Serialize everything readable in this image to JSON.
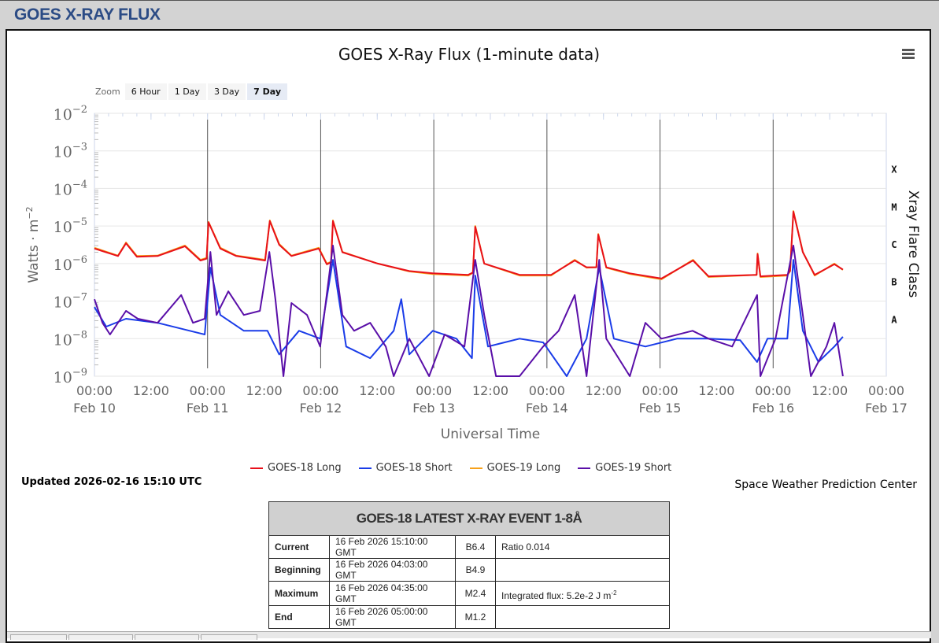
{
  "header": {
    "title": "GOES X-RAY FLUX"
  },
  "zoom": {
    "label": "Zoom",
    "buttons": [
      "6 Hour",
      "1 Day",
      "3 Day",
      "7 Day"
    ],
    "selected": "7 Day"
  },
  "updated": "Updated 2026-02-16 15:10 UTC",
  "credit": "Space Weather Prediction Center",
  "chart_data": {
    "type": "line",
    "title": "GOES X-Ray Flux (1-minute data)",
    "xlabel": "Universal Time",
    "ylabel": "Watts · m",
    "ylabel_sup": "-2",
    "y2label": "Xray Flare Class",
    "yscale": "log10",
    "ylim_exp": [
      -9,
      -2
    ],
    "y_tick_base": "10",
    "y_tick_exps": [
      "-2",
      "-3",
      "-4",
      "-5",
      "-6",
      "-7",
      "-8",
      "-9"
    ],
    "flare_classes": [
      {
        "label": "X",
        "log": -3.5
      },
      {
        "label": "M",
        "log": -4.5
      },
      {
        "label": "C",
        "log": -5.5
      },
      {
        "label": "B",
        "log": -6.5
      },
      {
        "label": "A",
        "log": -7.5
      }
    ],
    "x_unit": "hours since Feb 10 00:00 UTC",
    "xlim": [
      0,
      168
    ],
    "x_ticks": [
      {
        "h": 0,
        "time": "00:00",
        "date": "Feb 10"
      },
      {
        "h": 12,
        "time": "12:00",
        "date": ""
      },
      {
        "h": 24,
        "time": "00:00",
        "date": "Feb 11"
      },
      {
        "h": 36,
        "time": "12:00",
        "date": ""
      },
      {
        "h": 48,
        "time": "00:00",
        "date": "Feb 12"
      },
      {
        "h": 60,
        "time": "12:00",
        "date": ""
      },
      {
        "h": 72,
        "time": "00:00",
        "date": "Feb 13"
      },
      {
        "h": 84,
        "time": "12:00",
        "date": ""
      },
      {
        "h": 96,
        "time": "00:00",
        "date": "Feb 14"
      },
      {
        "h": 108,
        "time": "12:00",
        "date": ""
      },
      {
        "h": 120,
        "time": "00:00",
        "date": "Feb 15"
      },
      {
        "h": 132,
        "time": "12:00",
        "date": ""
      },
      {
        "h": 144,
        "time": "00:00",
        "date": "Feb 16"
      },
      {
        "h": 156,
        "time": "12:00",
        "date": ""
      },
      {
        "h": 168,
        "time": "00:00",
        "date": "Feb 17"
      }
    ],
    "series": [
      {
        "name": "GOES-18 Long",
        "color": "#e8101a",
        "points": [
          [
            0,
            -5.6
          ],
          [
            5,
            -5.8
          ],
          [
            6.7,
            -5.46
          ],
          [
            9,
            -5.82
          ],
          [
            13.4,
            -5.8
          ],
          [
            19.2,
            -5.54
          ],
          [
            22.5,
            -5.92
          ],
          [
            23.8,
            -5.87
          ],
          [
            24.2,
            -4.9
          ],
          [
            26.7,
            -5.6
          ],
          [
            30.1,
            -5.8
          ],
          [
            36.2,
            -5.92
          ],
          [
            37.2,
            -4.87
          ],
          [
            39.2,
            -5.5
          ],
          [
            41.8,
            -5.8
          ],
          [
            47.6,
            -5.6
          ],
          [
            49.3,
            -6.02
          ],
          [
            50.2,
            -5.97
          ],
          [
            50.6,
            -4.87
          ],
          [
            52.6,
            -5.7
          ],
          [
            60.1,
            -6.0
          ],
          [
            66.8,
            -6.2
          ],
          [
            71.8,
            -6.26
          ],
          [
            79.3,
            -6.3
          ],
          [
            80.3,
            -6.24
          ],
          [
            80.8,
            -5.02
          ],
          [
            82.7,
            -6.0
          ],
          [
            90.2,
            -6.3
          ],
          [
            96.9,
            -6.3
          ],
          [
            101.9,
            -5.92
          ],
          [
            104.4,
            -6.1
          ],
          [
            106.5,
            -6.1
          ],
          [
            106.9,
            -5.23
          ],
          [
            108.6,
            -6.1
          ],
          [
            113.6,
            -6.26
          ],
          [
            120.3,
            -6.4
          ],
          [
            127,
            -5.92
          ],
          [
            130.3,
            -6.34
          ],
          [
            140.5,
            -6.3
          ],
          [
            140.7,
            -5.75
          ],
          [
            141.3,
            -6.34
          ],
          [
            147,
            -6.3
          ],
          [
            147.6,
            -6.2
          ],
          [
            148.3,
            -4.62
          ],
          [
            150.3,
            -5.7
          ],
          [
            152.8,
            -6.3
          ],
          [
            157,
            -6.02
          ],
          [
            158.8,
            -6.16
          ]
        ]
      },
      {
        "name": "GOES-18 Short",
        "color": "#1a3ce8",
        "points": [
          [
            0,
            -7.16
          ],
          [
            2.5,
            -7.68
          ],
          [
            6.7,
            -7.47
          ],
          [
            13.4,
            -7.58
          ],
          [
            23.4,
            -7.89
          ],
          [
            24.6,
            -6.11
          ],
          [
            26.7,
            -7.37
          ],
          [
            31.7,
            -7.79
          ],
          [
            36.7,
            -7.79
          ],
          [
            39.2,
            -8.42
          ],
          [
            43.4,
            -7.79
          ],
          [
            47.9,
            -8.0
          ],
          [
            50.6,
            -5.9
          ],
          [
            53.4,
            -8.21
          ],
          [
            58.5,
            -8.52
          ],
          [
            63.5,
            -7.79
          ],
          [
            65.1,
            -6.95
          ],
          [
            66.8,
            -8.42
          ],
          [
            71.8,
            -7.79
          ],
          [
            76.8,
            -8.0
          ],
          [
            80.1,
            -8.52
          ],
          [
            80.8,
            -6.32
          ],
          [
            83.5,
            -8.21
          ],
          [
            90.2,
            -8.0
          ],
          [
            95.2,
            -8.1
          ],
          [
            100.2,
            -9.0
          ],
          [
            104.4,
            -8.0
          ],
          [
            107.1,
            -6.11
          ],
          [
            110.2,
            -8.0
          ],
          [
            116.9,
            -8.21
          ],
          [
            123.6,
            -8.0
          ],
          [
            130.3,
            -8.0
          ],
          [
            137,
            -8.04
          ],
          [
            140.6,
            -8.62
          ],
          [
            142.8,
            -8.0
          ],
          [
            147,
            -8.0
          ],
          [
            148.3,
            -5.9
          ],
          [
            150.3,
            -7.79
          ],
          [
            153.6,
            -8.62
          ],
          [
            157,
            -8.21
          ],
          [
            158.8,
            -7.95
          ]
        ]
      },
      {
        "name": "GOES-19 Long",
        "color": "#f7a11a",
        "points": [
          [
            0,
            -5.58
          ],
          [
            5,
            -5.79
          ],
          [
            6.7,
            -5.44
          ],
          [
            9,
            -5.8
          ],
          [
            13.4,
            -5.79
          ],
          [
            19.2,
            -5.52
          ],
          [
            22.5,
            -5.9
          ],
          [
            23.8,
            -5.85
          ],
          [
            24.2,
            -4.89
          ],
          [
            26.7,
            -5.58
          ],
          [
            30.1,
            -5.79
          ],
          [
            36.2,
            -5.9
          ],
          [
            37.2,
            -4.85
          ],
          [
            39.2,
            -5.48
          ],
          [
            41.8,
            -5.79
          ],
          [
            47.6,
            -5.58
          ],
          [
            49.3,
            -6.0
          ],
          [
            50.2,
            -5.95
          ],
          [
            50.6,
            -4.85
          ],
          [
            52.6,
            -5.69
          ],
          [
            60.1,
            -6.0
          ],
          [
            66.8,
            -6.21
          ],
          [
            71.8,
            -6.28
          ],
          [
            79.3,
            -6.32
          ],
          [
            80.3,
            -6.25
          ],
          [
            80.8,
            -5.0
          ],
          [
            82.7,
            -6.0
          ],
          [
            90.2,
            -6.32
          ],
          [
            96.9,
            -6.32
          ],
          [
            101.9,
            -5.9
          ],
          [
            104.4,
            -6.11
          ],
          [
            106.5,
            -6.1
          ],
          [
            106.9,
            -5.21
          ],
          [
            108.6,
            -6.11
          ],
          [
            113.6,
            -6.28
          ],
          [
            120.3,
            -6.42
          ],
          [
            127,
            -5.9
          ],
          [
            130.3,
            -6.36
          ],
          [
            140.5,
            -6.3
          ],
          [
            140.7,
            -5.73
          ],
          [
            141.3,
            -6.36
          ],
          [
            147,
            -6.32
          ],
          [
            147.6,
            -6.2
          ],
          [
            148.3,
            -4.6
          ],
          [
            150.3,
            -5.69
          ],
          [
            152.8,
            -6.32
          ],
          [
            157,
            -6.0
          ],
          [
            158.8,
            -6.17
          ]
        ]
      },
      {
        "name": "GOES-19 Short",
        "color": "#5a0fa8",
        "points": [
          [
            0,
            -6.95
          ],
          [
            1.7,
            -7.58
          ],
          [
            3.3,
            -7.89
          ],
          [
            6.7,
            -7.26
          ],
          [
            9.2,
            -7.47
          ],
          [
            13.4,
            -7.58
          ],
          [
            18.4,
            -6.84
          ],
          [
            20.9,
            -7.58
          ],
          [
            23.4,
            -7.47
          ],
          [
            24.6,
            -5.69
          ],
          [
            25.9,
            -7.37
          ],
          [
            28.4,
            -6.74
          ],
          [
            31.7,
            -7.37
          ],
          [
            35.1,
            -7.26
          ],
          [
            37.1,
            -5.69
          ],
          [
            38.4,
            -6.95
          ],
          [
            40.1,
            -9.0
          ],
          [
            41.8,
            -7.05
          ],
          [
            45.1,
            -7.37
          ],
          [
            47.9,
            -8.21
          ],
          [
            50.6,
            -5.52
          ],
          [
            52.6,
            -7.37
          ],
          [
            55.1,
            -7.79
          ],
          [
            58.5,
            -7.58
          ],
          [
            61.8,
            -8.21
          ],
          [
            63.5,
            -9.0
          ],
          [
            66.8,
            -8.0
          ],
          [
            71,
            -9.0
          ],
          [
            74.3,
            -7.89
          ],
          [
            78.5,
            -8.21
          ],
          [
            80.8,
            -5.9
          ],
          [
            82.7,
            -7.37
          ],
          [
            85.2,
            -9.0
          ],
          [
            90.2,
            -9.0
          ],
          [
            95.2,
            -8.21
          ],
          [
            98.5,
            -7.79
          ],
          [
            101.9,
            -6.84
          ],
          [
            104.4,
            -9.0
          ],
          [
            107.1,
            -5.9
          ],
          [
            108.6,
            -8.0
          ],
          [
            113.6,
            -9.0
          ],
          [
            116.9,
            -7.58
          ],
          [
            120.3,
            -8.0
          ],
          [
            126.9,
            -7.79
          ],
          [
            130.3,
            -8.0
          ],
          [
            135.3,
            -8.21
          ],
          [
            140.6,
            -6.84
          ],
          [
            141.3,
            -9.0
          ],
          [
            144.5,
            -8.0
          ],
          [
            148.3,
            -5.52
          ],
          [
            150.3,
            -7.37
          ],
          [
            152,
            -9.0
          ],
          [
            155.3,
            -8.21
          ],
          [
            157,
            -7.58
          ],
          [
            158.8,
            -9.0
          ]
        ]
      }
    ]
  },
  "event_table": {
    "title": "GOES-18 LATEST X-RAY EVENT 1-8Å",
    "rows": [
      {
        "label": "Current",
        "time": "16 Feb 2026 15:10:00 GMT",
        "class": "B6.4",
        "note": "Ratio 0.014",
        "note_sup": ""
      },
      {
        "label": "Beginning",
        "time": "16 Feb 2026 04:03:00 GMT",
        "class": "B4.9",
        "note": "",
        "note_sup": ""
      },
      {
        "label": "Maximum",
        "time": "16 Feb 2026 04:35:00 GMT",
        "class": "M2.4",
        "note": "Integrated flux: 5.2e-2 J m",
        "note_sup": "-2"
      },
      {
        "label": "End",
        "time": "16 Feb 2026 05:00:00 GMT",
        "class": "M1.2",
        "note": "",
        "note_sup": ""
      }
    ]
  }
}
